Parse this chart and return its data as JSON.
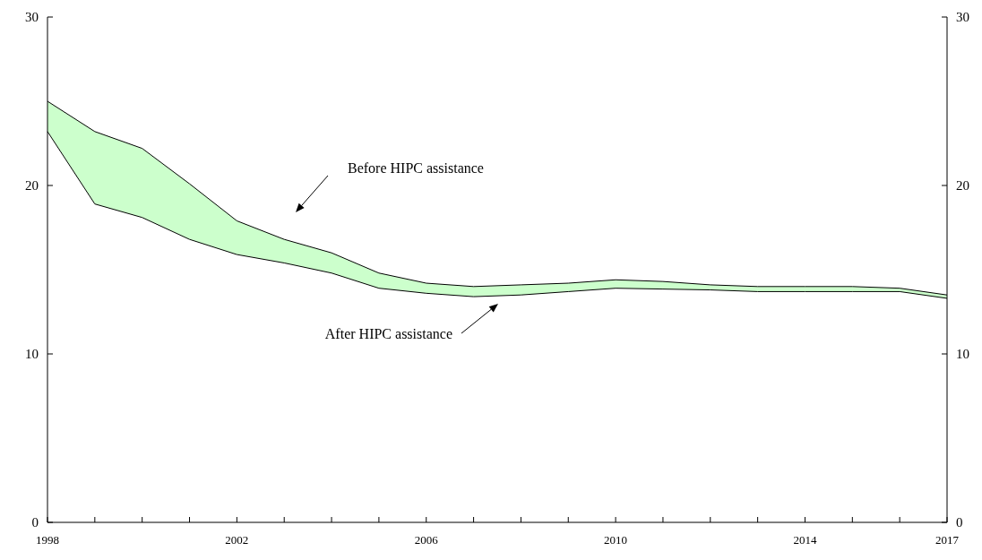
{
  "chart_data": {
    "type": "line",
    "x": [
      1998,
      1999,
      2000,
      2001,
      2002,
      2003,
      2004,
      2005,
      2006,
      2007,
      2008,
      2009,
      2010,
      2011,
      2012,
      2013,
      2014,
      2015,
      2016,
      2017
    ],
    "series": [
      {
        "color": "#000000",
        "values": [
          25.0,
          23.2,
          22.2,
          20.1,
          17.9,
          16.8,
          16.0,
          14.8,
          14.2,
          14.0,
          14.1,
          14.2,
          14.4,
          14.3,
          14.1,
          14.0,
          14.0,
          14.0,
          13.9,
          13.5
        ],
        "lower": [
          23.2,
          18.9,
          18.1,
          16.8,
          15.9,
          15.4,
          14.8,
          13.9,
          13.6,
          13.4,
          13.5,
          13.7,
          13.9,
          13.85,
          13.8,
          13.7,
          13.7,
          13.7,
          13.7,
          13.3
        ],
        "upper": [
          25.0,
          23.2,
          22.2,
          20.1,
          17.9,
          16.8,
          16.0,
          14.8,
          14.2,
          14.0,
          14.1,
          14.2,
          14.4,
          14.3,
          14.1,
          14.0,
          14.0,
          14.0,
          13.9,
          13.5
        ]
      },
      {
        "color": "#000000",
        "values": [
          23.2,
          18.9,
          18.1,
          16.8,
          15.9,
          15.4,
          14.8,
          13.9,
          13.6,
          13.4,
          13.5,
          13.7,
          13.9,
          13.85,
          13.8,
          13.7,
          13.7,
          13.7,
          13.7,
          13.3
        ]
      }
    ],
    "xlim": [
      1998,
      2017
    ],
    "xticks": [
      1998,
      {
        "value": 1999,
        "label": null
      },
      {
        "value": 2000,
        "label": null
      },
      {
        "value": 2001,
        "label": null
      },
      2002,
      {
        "value": 2003,
        "label": null
      },
      {
        "value": 2004,
        "label": null
      },
      {
        "value": 2005,
        "label": null
      },
      2006,
      {
        "value": 2007,
        "label": null
      },
      {
        "value": 2008,
        "label": null
      },
      {
        "value": 2009,
        "label": null
      },
      2010,
      {
        "value": 2011,
        "label": null
      },
      {
        "value": 2012,
        "label": null
      },
      {
        "value": 2013,
        "label": null
      },
      2014,
      {
        "value": 2015,
        "label": null
      },
      {
        "value": 2016,
        "label": null
      },
      2017
    ],
    "ylim": [
      0,
      30
    ],
    "yticks": [
      0,
      10,
      20,
      30
    ],
    "y2lim": [
      0,
      30
    ],
    "y2ticks": [
      0,
      10,
      20,
      30
    ],
    "grid": false,
    "marker": "none",
    "line_style": "solid",
    "annotations": [
      "Before HIPC assistance",
      "After HIPC assistance"
    ]
  }
}
